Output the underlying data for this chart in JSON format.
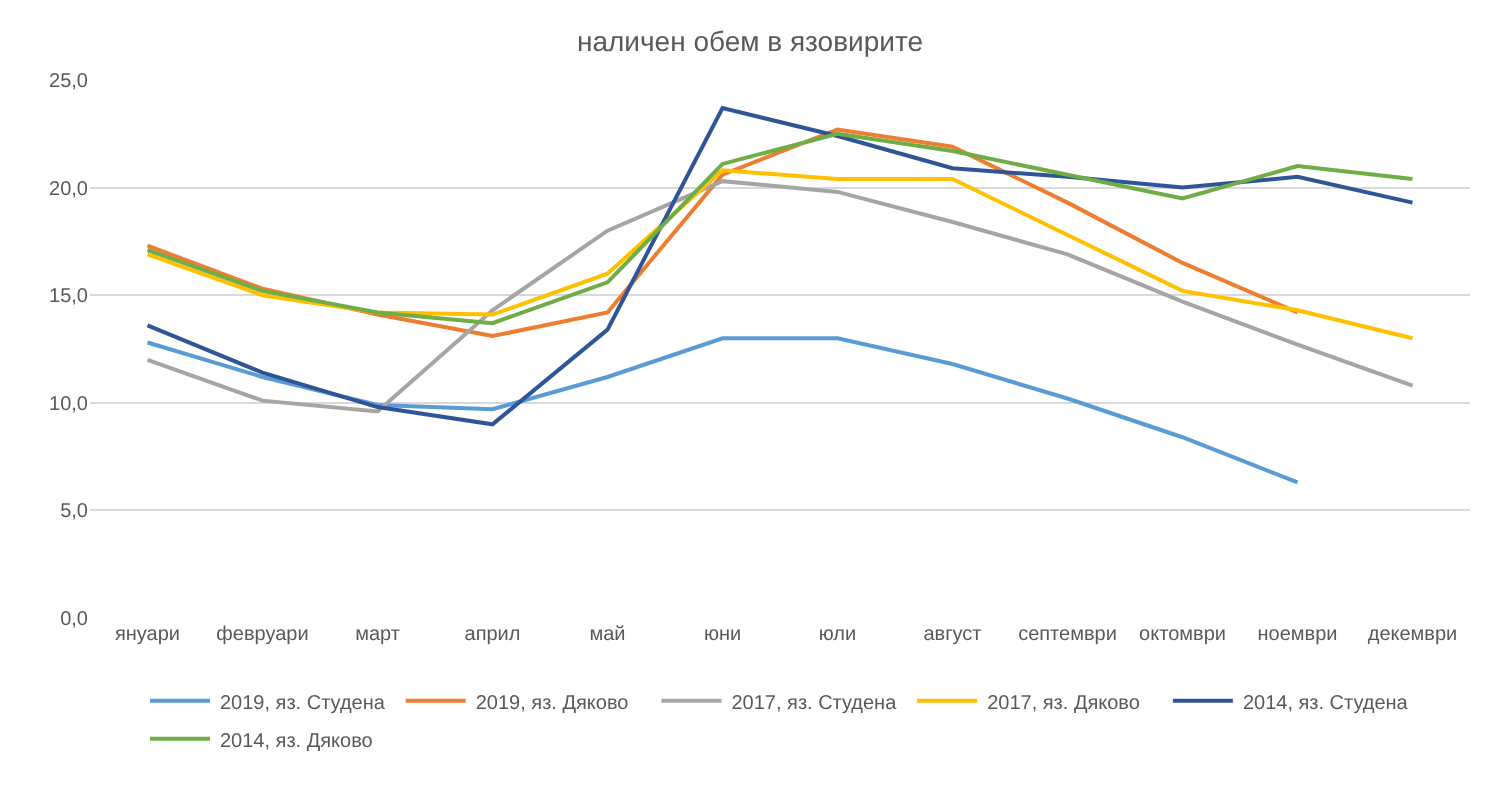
{
  "chart_data": {
    "type": "line",
    "title": "наличен обем в язовирите",
    "categories": [
      "януари",
      "февруари",
      "март",
      "април",
      "май",
      "юни",
      "юли",
      "август",
      "септември",
      "октомври",
      "ноември",
      "декември"
    ],
    "series": [
      {
        "name": "2019, яз. Студена",
        "color": "#5b9bd5",
        "values": [
          12.8,
          11.2,
          9.9,
          9.7,
          11.2,
          13.0,
          13.0,
          11.8,
          10.2,
          8.4,
          6.3,
          null
        ]
      },
      {
        "name": "2019, яз. Дяково",
        "color": "#ed7d31",
        "values": [
          17.3,
          15.3,
          14.1,
          13.1,
          14.2,
          20.6,
          22.7,
          21.9,
          19.3,
          16.5,
          14.2,
          null
        ]
      },
      {
        "name": "2017, яз. Студена",
        "color": "#a5a5a5",
        "values": [
          12.0,
          10.1,
          9.6,
          14.3,
          18.0,
          20.3,
          19.8,
          18.4,
          16.9,
          14.7,
          12.7,
          10.8
        ]
      },
      {
        "name": "2017, яз. Дяково",
        "color": "#ffc000",
        "values": [
          16.9,
          15.0,
          14.2,
          14.1,
          16.0,
          20.8,
          20.4,
          20.4,
          17.8,
          15.2,
          14.3,
          13.0
        ]
      },
      {
        "name": "2014, яз. Студена",
        "color": "#2f5597",
        "values": [
          13.6,
          11.4,
          9.8,
          9.0,
          13.4,
          23.7,
          22.4,
          20.9,
          20.5,
          20.0,
          20.5,
          19.3
        ]
      },
      {
        "name": "2014, яз. Дяково",
        "color": "#70ad47",
        "values": [
          17.1,
          15.2,
          14.2,
          13.7,
          15.6,
          21.1,
          22.5,
          21.7,
          20.6,
          19.5,
          21.0,
          20.4
        ]
      }
    ],
    "ylim": [
      0,
      25
    ],
    "yticks": [
      {
        "value": 0,
        "label": "0,0"
      },
      {
        "value": 5,
        "label": "5,0"
      },
      {
        "value": 10,
        "label": "10,0"
      },
      {
        "value": 15,
        "label": "15,0"
      },
      {
        "value": 20,
        "label": "20,0"
      },
      {
        "value": 25,
        "label": "25,0"
      }
    ],
    "grid": "y",
    "legend": "bottom",
    "marker": "none",
    "line_style": "solid"
  }
}
